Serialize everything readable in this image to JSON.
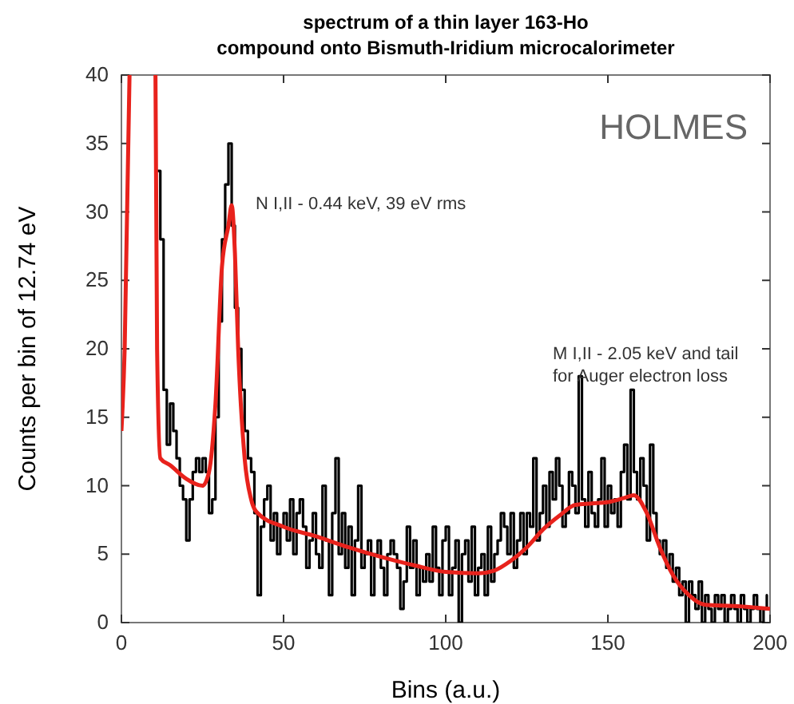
{
  "chart_data": {
    "type": "step",
    "title": "spectrum of a thin layer 163-Ho compound onto Bismuth-Iridium microcalorimeter",
    "xlabel": "Bins (a.u.)",
    "ylabel": "Counts per bin of 12.74 eV",
    "xlim": [
      0,
      200
    ],
    "ylim": [
      0,
      40
    ],
    "xticks": [
      0,
      50,
      100,
      150,
      200
    ],
    "yticks": [
      0,
      5,
      10,
      15,
      20,
      25,
      30,
      35,
      40
    ],
    "grid": false,
    "series": [
      {
        "color": "#000000",
        "x": [
          11,
          12,
          13,
          14,
          15,
          16,
          17,
          18,
          19,
          20,
          21,
          22,
          23,
          24,
          25,
          26,
          27,
          28,
          29,
          30,
          31,
          32,
          33,
          34,
          35,
          36,
          37,
          38,
          39,
          40,
          41,
          42,
          43,
          44,
          45,
          46,
          47,
          48,
          49,
          50,
          51,
          52,
          53,
          54,
          55,
          56,
          57,
          58,
          59,
          60,
          61,
          62,
          63,
          64,
          65,
          66,
          67,
          68,
          69,
          70,
          71,
          72,
          73,
          74,
          75,
          76,
          77,
          78,
          79,
          80,
          81,
          82,
          83,
          84,
          85,
          86,
          87,
          88,
          89,
          90,
          91,
          92,
          93,
          94,
          95,
          96,
          97,
          98,
          99,
          100,
          101,
          102,
          103,
          104,
          105,
          106,
          107,
          108,
          109,
          110,
          111,
          112,
          113,
          114,
          115,
          116,
          117,
          118,
          119,
          120,
          121,
          122,
          123,
          124,
          125,
          126,
          127,
          128,
          129,
          130,
          131,
          132,
          133,
          134,
          135,
          136,
          137,
          138,
          139,
          140,
          141,
          142,
          143,
          144,
          145,
          146,
          147,
          148,
          149,
          150,
          151,
          152,
          153,
          154,
          155,
          156,
          157,
          158,
          159,
          160,
          161,
          162,
          163,
          164,
          165,
          166,
          167,
          168,
          169,
          170,
          171,
          172,
          173,
          174,
          175,
          176,
          177,
          178,
          179,
          180,
          181,
          182,
          183,
          184,
          185,
          186,
          187,
          188,
          189,
          190,
          191,
          192,
          193,
          194,
          195,
          196,
          197,
          198,
          199
        ],
        "values": [
          33,
          28,
          17,
          13,
          16,
          14,
          12,
          10,
          9,
          6,
          9,
          11,
          12,
          11,
          12,
          11,
          8,
          9,
          15,
          22,
          28,
          32,
          35,
          29,
          23,
          20,
          17,
          14,
          12,
          11,
          8,
          2,
          7,
          9,
          10,
          6,
          8,
          5,
          7,
          8,
          6,
          9,
          5,
          8,
          9,
          7,
          4,
          6,
          8,
          5,
          4,
          10,
          6,
          2,
          8,
          12,
          5,
          8,
          4,
          7,
          2,
          6,
          10,
          4,
          5,
          6,
          2,
          5,
          6,
          4,
          2,
          5,
          6,
          5,
          4,
          1,
          3,
          7,
          4,
          6,
          2,
          4,
          3,
          5,
          3,
          7,
          4,
          2,
          6,
          7,
          2,
          4,
          6,
          0,
          5,
          6,
          3,
          7,
          2,
          4,
          5,
          2,
          7,
          3,
          5,
          6,
          8,
          7,
          5,
          8,
          4,
          6,
          8,
          5,
          8,
          7,
          12,
          6,
          8,
          10,
          7,
          11,
          9,
          12,
          10,
          7,
          8,
          11,
          10,
          8,
          18,
          9,
          7,
          11,
          8,
          7,
          9,
          12,
          7,
          10,
          8,
          9,
          7,
          11,
          13,
          9,
          17,
          11,
          9,
          12,
          10,
          6,
          13,
          8,
          6,
          5,
          6,
          4,
          5,
          3,
          4,
          2,
          3,
          0,
          3,
          2,
          1,
          3,
          0,
          2,
          1,
          0,
          2,
          1,
          2,
          0,
          1,
          2,
          1,
          0,
          2,
          1,
          0,
          1,
          2,
          1,
          0,
          1,
          2
        ]
      },
      {
        "type": "line",
        "color": "#e8221c",
        "x": [
          0,
          1,
          2.5
        ],
        "values": [
          14,
          20,
          40
        ]
      },
      {
        "type": "line",
        "color": "#e8221c",
        "x": [
          10.5,
          11,
          12,
          15,
          20,
          25,
          27,
          29,
          31,
          33,
          34,
          35,
          36,
          38,
          40,
          42,
          50,
          60,
          70,
          80,
          90,
          100,
          110,
          115,
          120,
          125,
          130,
          135,
          140,
          145,
          150,
          155,
          158,
          162,
          166,
          170,
          175,
          180,
          190,
          200
        ],
        "values": [
          40,
          20,
          12,
          11.5,
          10.5,
          10,
          11,
          16,
          26,
          29,
          30.5,
          27,
          20,
          12,
          9,
          8,
          7,
          6.3,
          5.5,
          4.8,
          4.2,
          3.7,
          3.6,
          3.8,
          4.5,
          5.5,
          6.8,
          7.8,
          8.6,
          8.7,
          8.8,
          9.1,
          9.3,
          8,
          5.5,
          3.5,
          2,
          1.3,
          1.2,
          1
        ]
      }
    ],
    "annotations": [
      "N I,II - 0.44 keV, 39 eV rms",
      "M I,II - 2.05 keV and tail for Auger electron loss",
      "HOLMES"
    ]
  }
}
